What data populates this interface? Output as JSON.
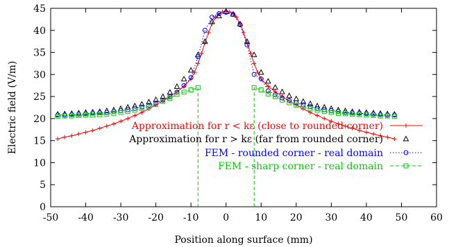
{
  "chart_data": {
    "type": "line",
    "xlabel": "Position along surface (mm)",
    "ylabel": "Electric field (V/m)",
    "xlim": [
      -50,
      60
    ],
    "ylim": [
      0,
      45
    ],
    "xticks": [
      -50,
      -40,
      -30,
      -20,
      -10,
      0,
      10,
      20,
      30,
      40,
      50,
      60
    ],
    "yticks": [
      0,
      5,
      10,
      15,
      20,
      25,
      30,
      35,
      40,
      45
    ],
    "grid": false,
    "legend_position": "bottom-right inside",
    "series": [
      {
        "name": "Approximation for r < kε (close to rounded corner)",
        "color": "#ff0000",
        "style": "solid",
        "marker": "plus",
        "x": [
          -48,
          -46,
          -44,
          -42,
          -40,
          -38,
          -36,
          -34,
          -32,
          -30,
          -28,
          -26,
          -24,
          -22,
          -20,
          -18,
          -16,
          -14,
          -12,
          -10,
          -9,
          -8,
          -7,
          -6,
          -5,
          -4,
          -3,
          -2,
          -1,
          0,
          1,
          2,
          3,
          4,
          5,
          6,
          7,
          8,
          9,
          10,
          12,
          14,
          16,
          18,
          20,
          22,
          24,
          26,
          28,
          30,
          32,
          34,
          36,
          38,
          40,
          42,
          44,
          46,
          48
        ],
        "y": [
          15.4,
          15.8,
          16.1,
          16.5,
          16.9,
          17.3,
          17.8,
          18.3,
          18.8,
          19.4,
          20.0,
          20.7,
          21.4,
          22.2,
          23.1,
          24.0,
          25.0,
          26.1,
          27.3,
          29.0,
          30.5,
          32.5,
          34.8,
          37.2,
          39.5,
          41.5,
          43.0,
          43.8,
          44.2,
          44.3,
          44.2,
          43.8,
          43.0,
          41.5,
          39.5,
          37.2,
          34.8,
          32.5,
          30.5,
          29.0,
          27.3,
          26.1,
          25.0,
          24.0,
          23.1,
          22.2,
          21.4,
          20.7,
          20.0,
          19.4,
          18.8,
          18.3,
          17.8,
          17.3,
          16.9,
          16.5,
          16.1,
          15.8,
          15.4
        ]
      },
      {
        "name": "Approximation for r > kε (far from rounded corner)",
        "color": "#000000",
        "style": "points",
        "marker": "triangle",
        "x": [
          -48,
          -46,
          -44,
          -42,
          -40,
          -38,
          -36,
          -34,
          -32,
          -30,
          -28,
          -26,
          -24,
          -22,
          -20,
          -18,
          -16,
          -14,
          -12,
          -10,
          -8,
          -6,
          -4,
          -2,
          0,
          2,
          4,
          6,
          8,
          10,
          12,
          14,
          16,
          18,
          20,
          22,
          24,
          26,
          28,
          30,
          32,
          34,
          36,
          38,
          40,
          42,
          44,
          46,
          48
        ],
        "y": [
          21.0,
          21.1,
          21.2,
          21.3,
          21.4,
          21.5,
          21.6,
          21.8,
          22.0,
          22.3,
          22.6,
          22.9,
          23.3,
          23.8,
          24.3,
          25.0,
          26.0,
          27.3,
          29.0,
          31.0,
          34.5,
          37.5,
          42.0,
          43.3,
          44.3,
          43.7,
          41.5,
          37.5,
          34.5,
          30.5,
          28.5,
          27.1,
          26.1,
          25.2,
          24.5,
          23.9,
          23.4,
          22.9,
          22.6,
          22.3,
          22.0,
          21.8,
          21.6,
          21.5,
          21.4,
          21.3,
          21.2,
          21.1,
          21.0
        ]
      },
      {
        "name": "FEM - rounded corner - real domain",
        "color": "#0000ff",
        "style": "dotted",
        "marker": "circle",
        "x": [
          -48,
          -46,
          -44,
          -42,
          -40,
          -38,
          -36,
          -34,
          -32,
          -30,
          -28,
          -26,
          -24,
          -22,
          -20,
          -18,
          -16,
          -14,
          -12,
          -10,
          -8,
          -6,
          -4,
          -2,
          0,
          2,
          4,
          6,
          8,
          10,
          12,
          14,
          16,
          18,
          20,
          22,
          24,
          26,
          28,
          30,
          32,
          34,
          36,
          38,
          40,
          42,
          44,
          46,
          48
        ],
        "y": [
          20.8,
          20.8,
          20.9,
          21.0,
          21.1,
          21.2,
          21.3,
          21.4,
          21.6,
          21.8,
          22.0,
          22.3,
          22.6,
          23.0,
          23.5,
          24.2,
          25.0,
          26.0,
          27.5,
          29.3,
          34.0,
          40.0,
          43.0,
          43.8,
          44.1,
          43.6,
          41.3,
          36.7,
          30.0,
          29.0,
          26.3,
          25.4,
          24.7,
          24.1,
          23.6,
          23.1,
          22.7,
          22.3,
          22.0,
          21.8,
          21.6,
          21.4,
          21.3,
          21.2,
          21.1,
          21.0,
          20.9,
          20.8,
          20.8
        ]
      },
      {
        "name": "FEM - sharp corner - real domain",
        "color": "#00cc00",
        "style": "dashed",
        "marker": "square",
        "x": [
          -48,
          -46,
          -44,
          -42,
          -40,
          -38,
          -36,
          -34,
          -32,
          -30,
          -28,
          -26,
          -24,
          -22,
          -20,
          -18,
          -16,
          -14,
          -12,
          -10,
          -8,
          -8,
          null,
          8,
          8,
          10,
          12,
          14,
          16,
          18,
          20,
          22,
          24,
          26,
          28,
          30,
          32,
          34,
          36,
          38,
          40,
          42,
          44,
          46,
          48
        ],
        "y": [
          20.5,
          20.6,
          20.6,
          20.7,
          20.8,
          20.8,
          20.9,
          21.0,
          21.2,
          21.4,
          21.6,
          21.9,
          22.3,
          22.7,
          23.2,
          23.9,
          24.6,
          25.5,
          26.0,
          26.5,
          27.0,
          0,
          null,
          0,
          27.0,
          26.5,
          25.6,
          25.0,
          24.2,
          23.6,
          23.0,
          22.6,
          22.2,
          21.9,
          21.6,
          21.4,
          21.2,
          21.1,
          21.0,
          20.9,
          20.8,
          20.7,
          20.6,
          20.6,
          20.5
        ]
      }
    ]
  }
}
